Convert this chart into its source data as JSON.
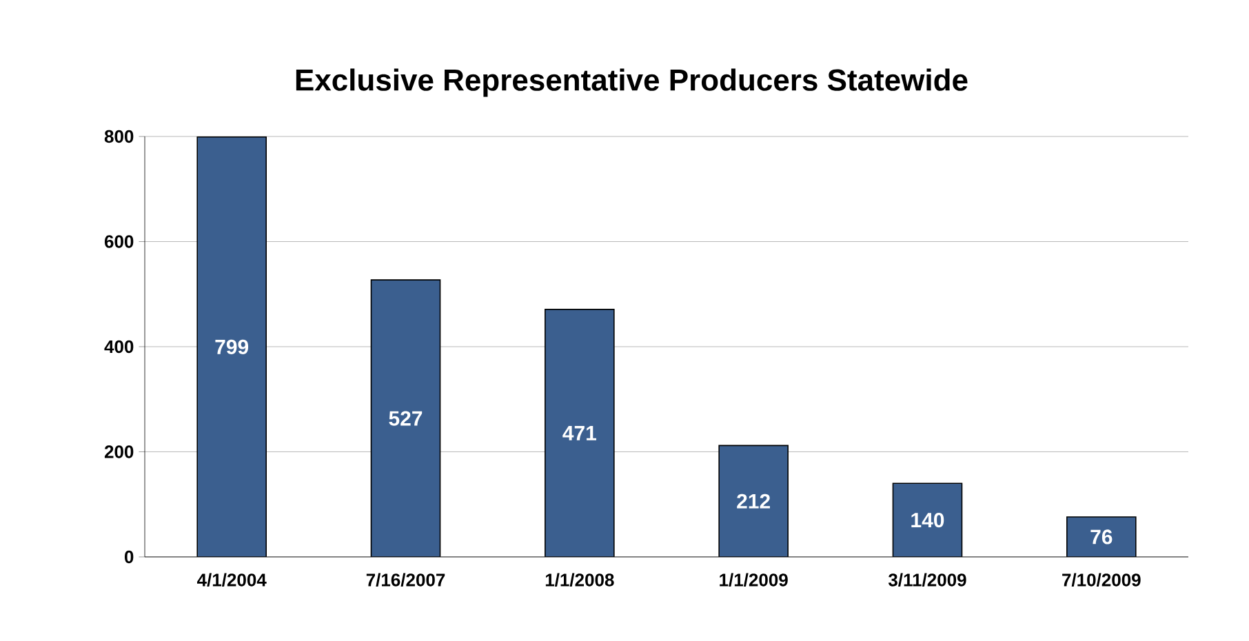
{
  "chart_data": {
    "type": "bar",
    "title": "Exclusive Representative Producers Statewide",
    "categories": [
      "4/1/2004",
      "7/16/2007",
      "1/1/2008",
      "1/1/2009",
      "3/11/2009",
      "7/10/2009"
    ],
    "values": [
      799,
      527,
      471,
      212,
      140,
      76
    ],
    "color": "#3b5f8f",
    "ylim": [
      0,
      800
    ],
    "yticks": [
      0,
      200,
      400,
      600,
      800
    ],
    "grid": "y",
    "data_labels": true
  }
}
